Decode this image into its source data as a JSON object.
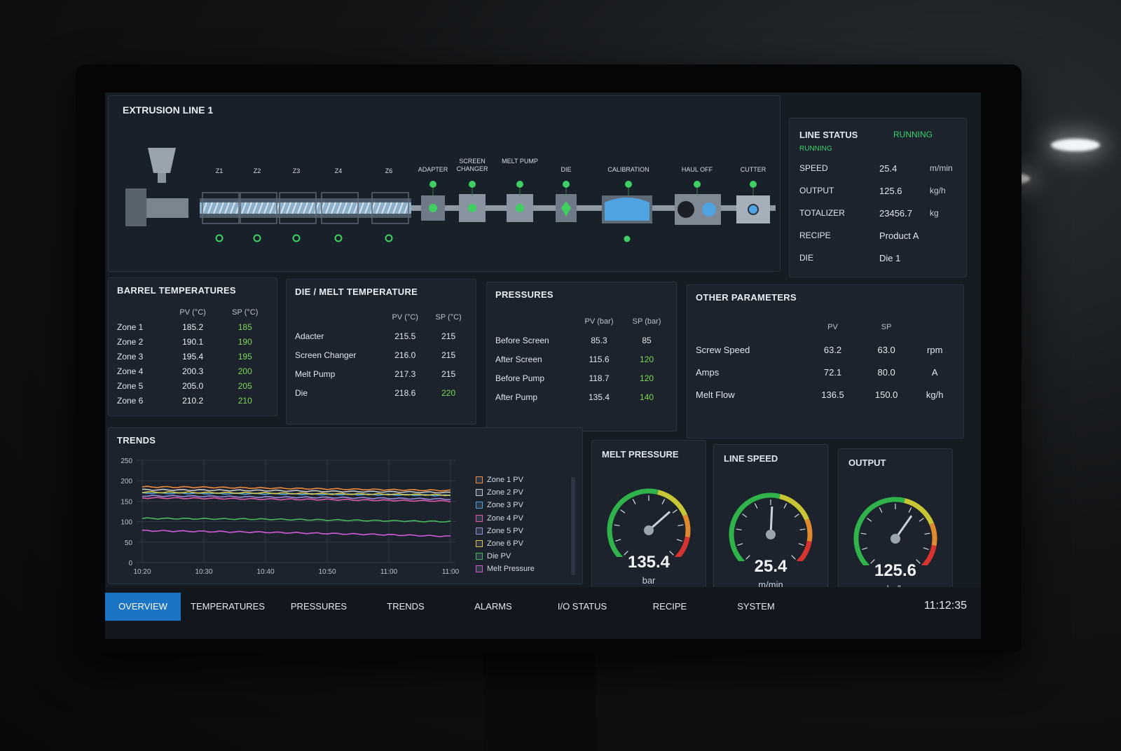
{
  "header": {
    "title": "EXTRUSION LINE 1"
  },
  "process": {
    "zones": [
      "Z1",
      "Z2",
      "Z3",
      "Z4",
      "Z6"
    ],
    "stations": [
      {
        "label": "ADAPTER"
      },
      {
        "label": "SCREEN CHANGER"
      },
      {
        "label": "MELT PUMP"
      },
      {
        "label": "DIE"
      },
      {
        "label": "CALIBRATION"
      },
      {
        "label": "HAUL OFF"
      },
      {
        "label": "CUTTER"
      }
    ]
  },
  "line_status": {
    "title": "LINE STATUS",
    "state": "RUNNING",
    "state_sub": "RUNNING",
    "rows": [
      {
        "label": "SPEED",
        "value": "25.4",
        "unit": "m/min"
      },
      {
        "label": "OUTPUT",
        "value": "125.6",
        "unit": "kg/h"
      },
      {
        "label": "TOTALIZER",
        "value": "23456.7",
        "unit": "kg"
      },
      {
        "label": "RECIPE",
        "value": "Product A",
        "unit": ""
      },
      {
        "label": "DIE",
        "value": "Die 1",
        "unit": ""
      }
    ]
  },
  "barrel": {
    "title": "BARREL TEMPERATURES",
    "pv_header": "PV (°C)",
    "sp_header": "SP (°C)",
    "rows": [
      {
        "name": "Zone 1",
        "pv": "185.2",
        "sp": "185"
      },
      {
        "name": "Zone 2",
        "pv": "190.1",
        "sp": "190"
      },
      {
        "name": "Zone 3",
        "pv": "195.4",
        "sp": "195"
      },
      {
        "name": "Zone 4",
        "pv": "200.3",
        "sp": "200"
      },
      {
        "name": "Zone 5",
        "pv": "205.0",
        "sp": "205"
      },
      {
        "name": "Zone 6",
        "pv": "210.2",
        "sp": "210"
      }
    ]
  },
  "die_melt": {
    "title": "DIE / MELT TEMPERATURE",
    "pv_header": "PV (°C)",
    "sp_header": "SP (°C)",
    "rows": [
      {
        "name": "Adacter",
        "pv": "215.5",
        "sp": "215"
      },
      {
        "name": "Screen Changer",
        "pv": "216.0",
        "sp": "215"
      },
      {
        "name": "Melt Pump",
        "pv": "217.3",
        "sp": "215"
      },
      {
        "name": "Die",
        "pv": "218.6",
        "sp": "220"
      }
    ]
  },
  "pressures": {
    "title": "PRESSURES",
    "pv_header": "PV (bar)",
    "sp_header": "SP (bar)",
    "rows": [
      {
        "name": "Before Screen",
        "pv": "85.3",
        "sp": "85"
      },
      {
        "name": "After Screen",
        "pv": "115.6",
        "sp": "120"
      },
      {
        "name": "Before Pump",
        "pv": "118.7",
        "sp": "120"
      },
      {
        "name": "After Pump",
        "pv": "135.4",
        "sp": "140"
      }
    ]
  },
  "other": {
    "title": "OTHER PARAMETERS",
    "pv_header": "PV",
    "sp_header": "SP",
    "rows": [
      {
        "name": "Screw Speed",
        "pv": "63.2",
        "sp": "63.0",
        "unit": "rpm"
      },
      {
        "name": "Amps",
        "pv": "72.1",
        "sp": "80.0",
        "unit": "A"
      },
      {
        "name": "Melt Flow",
        "pv": "136.5",
        "sp": "150.0",
        "unit": "kg/h"
      }
    ]
  },
  "trends": {
    "title": "TRENDS"
  },
  "chart_data": {
    "type": "line",
    "title": "TRENDS",
    "x": [
      "10:20",
      "10:30",
      "10:40",
      "10:50",
      "11:00",
      "11:00"
    ],
    "y_ticks": [
      0,
      50,
      100,
      150,
      200,
      250
    ],
    "ylim": [
      0,
      250
    ],
    "grid": true,
    "legend_position": "right",
    "series": [
      {
        "name": "Zone 1 PV",
        "color": "#f08a3c",
        "values": [
          185,
          184,
          182,
          180,
          178,
          176
        ]
      },
      {
        "name": "Zone 2 PV",
        "color": "#c9c9c9",
        "values": [
          178,
          177,
          176,
          174,
          173,
          171
        ]
      },
      {
        "name": "Zone 3 PV",
        "color": "#4fa3e0",
        "values": [
          170,
          169,
          168,
          167,
          166,
          164
        ]
      },
      {
        "name": "Zone 4 PV",
        "color": "#e05aa8",
        "values": [
          158,
          157,
          155,
          154,
          152,
          150
        ]
      },
      {
        "name": "Zone 5 PV",
        "color": "#9a8ad8",
        "values": [
          163,
          162,
          160,
          159,
          157,
          155
        ]
      },
      {
        "name": "Zone 6 PV",
        "color": "#d8c84a",
        "values": [
          172,
          171,
          170,
          168,
          167,
          165
        ]
      },
      {
        "name": "Die PV",
        "color": "#48b85a",
        "values": [
          108,
          107,
          106,
          104,
          102,
          100
        ]
      },
      {
        "name": "Melt Pressure",
        "color": "#d05ad8",
        "values": [
          78,
          76,
          74,
          71,
          68,
          64
        ]
      }
    ]
  },
  "gauges": [
    {
      "title": "MELT PRESSURE",
      "value": "135.4",
      "unit": "bar",
      "fraction": 0.68
    },
    {
      "title": "LINE SPEED",
      "value": "25.4",
      "unit": "m/min",
      "fraction": 0.51
    },
    {
      "title": "OUTPUT",
      "value": "125.6",
      "unit": "kg/h",
      "fraction": 0.63
    }
  ],
  "nav": {
    "tabs": [
      "OVERVIEW",
      "TEMPERATURES",
      "PRESSURES",
      "TRENDS",
      "ALARMS",
      "I/O STATUS",
      "RECIPE",
      "SYSTEM"
    ],
    "active": "OVERVIEW",
    "clock": "11:12:35"
  }
}
